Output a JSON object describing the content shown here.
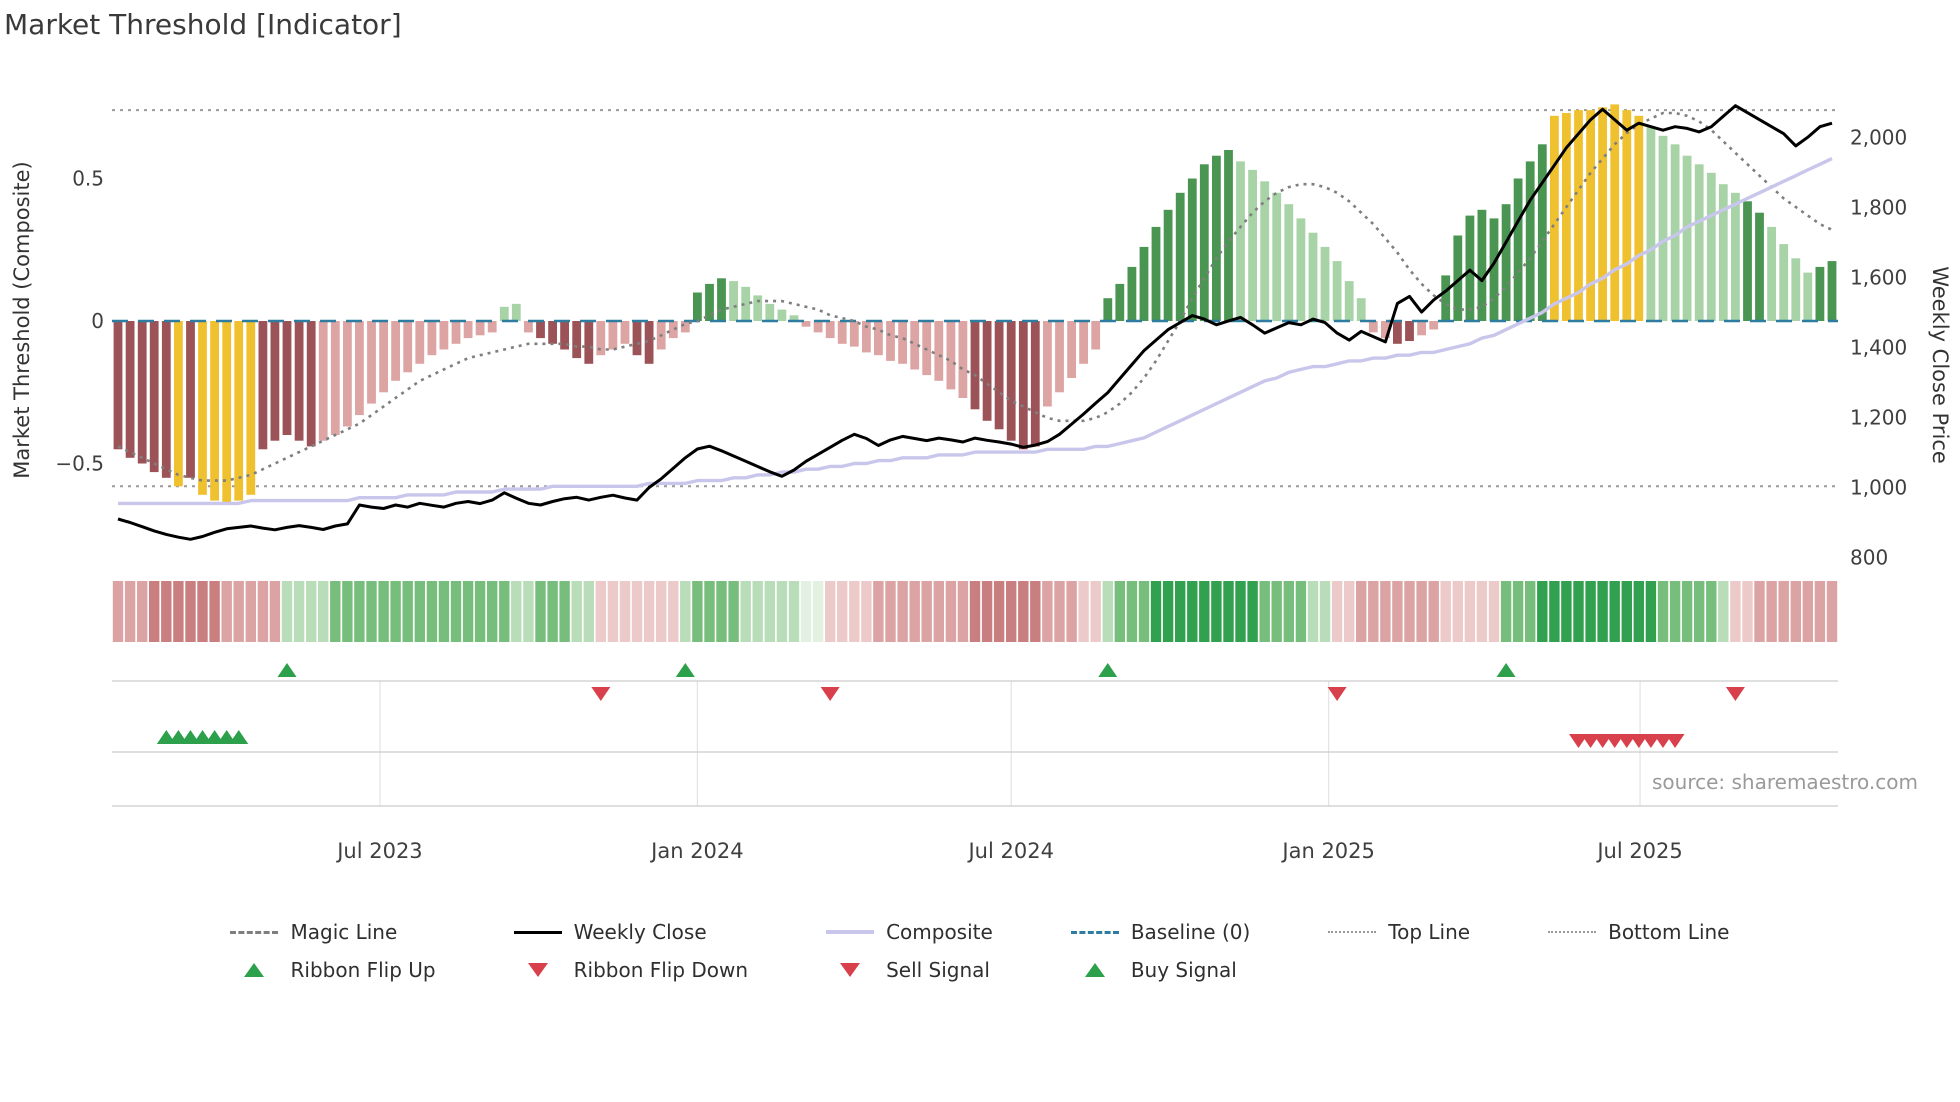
{
  "title": "Market Threshold [Indicator]",
  "source": "source: sharemaestro.com",
  "palette": {
    "bar_colors": {
      "dr": "#9c5358",
      "lr": "#dda4a4",
      "y": "#f0c12f",
      "lg": "#a7d3a7",
      "dg": "#4a9552"
    },
    "ribbon_colors": {
      "r3": "#c97f7f",
      "r2": "#dba3a3",
      "r1": "#eccaca",
      "g3": "#31a04f",
      "g2": "#77bd7c",
      "g1": "#b8ddb8",
      "g0": "#e2f1e2"
    },
    "magic_line": "#7f7f7f",
    "weekly_close": "#000000",
    "composite": "#c9c6ec",
    "baseline": "#2e7da0",
    "top_bottom": "#999999",
    "signal_green": "#2ca04a",
    "signal_red": "#d8404c",
    "panel_line": "#cccccc",
    "panel_grid": "#e3e3e3",
    "tick_text": "#3f3f3f"
  },
  "legend": {
    "row1": [
      {
        "label": "Magic Line",
        "swatch": "dashed-gray"
      },
      {
        "label": "Weekly Close",
        "swatch": "solid-black"
      },
      {
        "label": "Composite",
        "swatch": "solid-lavender"
      },
      {
        "label": "Baseline (0)",
        "swatch": "dashed-blue"
      },
      {
        "label": "Top Line",
        "swatch": "dotted-gray"
      },
      {
        "label": "Bottom Line",
        "swatch": "dotted-gray"
      }
    ],
    "row2": [
      {
        "label": "Ribbon Flip Up",
        "swatch": "triangle-up-green"
      },
      {
        "label": "Ribbon Flip Down",
        "swatch": "triangle-down-red"
      },
      {
        "label": "Sell Signal",
        "swatch": "triangle-down-red"
      },
      {
        "label": "Buy Signal",
        "swatch": "triangle-up-green"
      }
    ]
  },
  "chart_data": {
    "type": "bar+line",
    "x": {
      "unit": "week-index",
      "n": 143,
      "ticks": [
        {
          "week": 21.7,
          "label": "Jul 2023"
        },
        {
          "week": 48.0,
          "label": "Jan 2024"
        },
        {
          "week": 74.0,
          "label": "Jul 2024"
        },
        {
          "week": 100.3,
          "label": "Jan 2025"
        },
        {
          "week": 126.1,
          "label": "Jul 2025"
        }
      ]
    },
    "y_left": {
      "label": "Market Threshold (Composite)",
      "range": [
        -0.85,
        0.8
      ],
      "ticks": [
        {
          "value": 0.5,
          "label": "0.5"
        },
        {
          "value": 0,
          "label": "0"
        },
        {
          "value": -0.5,
          "label": "−0.5"
        }
      ]
    },
    "y_right": {
      "label": "Weekly Close Price",
      "range": [
        770,
        2125
      ],
      "ticks": [
        {
          "value": 2000,
          "label": "2,000"
        },
        {
          "value": 1800,
          "label": "1,800"
        },
        {
          "value": 1600,
          "label": "1,600"
        },
        {
          "value": 1400,
          "label": "1,400"
        },
        {
          "value": 1200,
          "label": "1,200"
        },
        {
          "value": 1000,
          "label": "1,000"
        },
        {
          "value": 800,
          "label": "800"
        }
      ]
    },
    "reference_lines": {
      "baseline": 0,
      "top_line": 0.74,
      "bottom_line": -0.58
    },
    "threshold_bars": {
      "axis": "left",
      "values": [
        -0.45,
        -0.48,
        -0.5,
        -0.53,
        -0.55,
        -0.58,
        -0.55,
        -0.61,
        -0.63,
        -0.64,
        -0.63,
        -0.61,
        -0.45,
        -0.42,
        -0.4,
        -0.42,
        -0.44,
        -0.42,
        -0.4,
        -0.37,
        -0.33,
        -0.29,
        -0.25,
        -0.21,
        -0.18,
        -0.15,
        -0.12,
        -0.1,
        -0.08,
        -0.06,
        -0.05,
        -0.04,
        0.05,
        0.06,
        -0.04,
        -0.06,
        -0.08,
        -0.1,
        -0.13,
        -0.15,
        -0.12,
        -0.1,
        -0.08,
        -0.12,
        -0.15,
        -0.1,
        -0.06,
        -0.04,
        0.1,
        0.13,
        0.15,
        0.14,
        0.12,
        0.09,
        0.06,
        0.04,
        0.02,
        -0.02,
        -0.04,
        -0.06,
        -0.08,
        -0.09,
        -0.11,
        -0.12,
        -0.14,
        -0.15,
        -0.17,
        -0.19,
        -0.21,
        -0.24,
        -0.27,
        -0.31,
        -0.35,
        -0.38,
        -0.42,
        -0.45,
        -0.44,
        -0.3,
        -0.25,
        -0.2,
        -0.15,
        -0.1,
        0.08,
        0.13,
        0.19,
        0.26,
        0.33,
        0.39,
        0.45,
        0.5,
        0.55,
        0.58,
        0.6,
        0.56,
        0.53,
        0.49,
        0.45,
        0.41,
        0.36,
        0.31,
        0.26,
        0.21,
        0.14,
        0.08,
        -0.04,
        -0.06,
        -0.08,
        -0.07,
        -0.05,
        -0.03,
        0.16,
        0.3,
        0.37,
        0.39,
        0.36,
        0.41,
        0.5,
        0.56,
        0.62,
        0.72,
        0.73,
        0.74,
        0.74,
        0.75,
        0.76,
        0.74,
        0.72,
        0.68,
        0.65,
        0.62,
        0.58,
        0.55,
        0.52,
        0.48,
        0.45,
        0.42,
        0.38,
        0.33,
        0.27,
        0.22,
        0.17,
        0.19,
        0.21
      ],
      "colors": [
        "dr",
        "dr",
        "dr",
        "dr",
        "dr",
        "y",
        "dr",
        "y",
        "y",
        "y",
        "y",
        "y",
        "dr",
        "dr",
        "dr",
        "dr",
        "dr",
        "lr",
        "lr",
        "lr",
        "lr",
        "lr",
        "lr",
        "lr",
        "lr",
        "lr",
        "lr",
        "lr",
        "lr",
        "lr",
        "lr",
        "lr",
        "lg",
        "lg",
        "lr",
        "dr",
        "dr",
        "dr",
        "dr",
        "dr",
        "lr",
        "lr",
        "lr",
        "dr",
        "dr",
        "lr",
        "lr",
        "lr",
        "dg",
        "dg",
        "dg",
        "lg",
        "lg",
        "lg",
        "lg",
        "lg",
        "lg",
        "lr",
        "lr",
        "lr",
        "lr",
        "lr",
        "lr",
        "lr",
        "lr",
        "lr",
        "lr",
        "lr",
        "lr",
        "lr",
        "lr",
        "dr",
        "dr",
        "dr",
        "dr",
        "dr",
        "dr",
        "lr",
        "lr",
        "lr",
        "lr",
        "lr",
        "dg",
        "dg",
        "dg",
        "dg",
        "dg",
        "dg",
        "dg",
        "dg",
        "dg",
        "dg",
        "dg",
        "lg",
        "lg",
        "lg",
        "lg",
        "lg",
        "lg",
        "lg",
        "lg",
        "lg",
        "lg",
        "lg",
        "lr",
        "lr",
        "dr",
        "dr",
        "lr",
        "lr",
        "dg",
        "dg",
        "dg",
        "dg",
        "dg",
        "dg",
        "dg",
        "dg",
        "dg",
        "y",
        "y",
        "y",
        "y",
        "y",
        "y",
        "y",
        "y",
        "lg",
        "lg",
        "lg",
        "lg",
        "lg",
        "lg",
        "lg",
        "lg",
        "dg",
        "dg",
        "lg",
        "lg",
        "lg",
        "lg",
        "dg",
        "dg"
      ]
    },
    "magic_line": {
      "axis": "left",
      "values": [
        -0.44,
        -0.46,
        -0.48,
        -0.5,
        -0.52,
        -0.54,
        -0.55,
        -0.56,
        -0.56,
        -0.56,
        -0.55,
        -0.54,
        -0.52,
        -0.5,
        -0.48,
        -0.46,
        -0.44,
        -0.42,
        -0.4,
        -0.38,
        -0.36,
        -0.33,
        -0.3,
        -0.27,
        -0.24,
        -0.21,
        -0.19,
        -0.17,
        -0.15,
        -0.13,
        -0.12,
        -0.11,
        -0.1,
        -0.09,
        -0.08,
        -0.08,
        -0.08,
        -0.08,
        -0.09,
        -0.09,
        -0.1,
        -0.1,
        -0.09,
        -0.08,
        -0.07,
        -0.05,
        -0.03,
        -0.01,
        0.0,
        0.02,
        0.04,
        0.05,
        0.06,
        0.07,
        0.07,
        0.07,
        0.06,
        0.05,
        0.04,
        0.02,
        0.01,
        0.0,
        -0.02,
        -0.03,
        -0.05,
        -0.06,
        -0.08,
        -0.1,
        -0.12,
        -0.14,
        -0.17,
        -0.19,
        -0.22,
        -0.25,
        -0.28,
        -0.3,
        -0.32,
        -0.34,
        -0.35,
        -0.35,
        -0.35,
        -0.34,
        -0.32,
        -0.29,
        -0.25,
        -0.2,
        -0.14,
        -0.07,
        0.0,
        0.08,
        0.15,
        0.22,
        0.28,
        0.33,
        0.38,
        0.42,
        0.45,
        0.47,
        0.48,
        0.48,
        0.47,
        0.45,
        0.42,
        0.38,
        0.34,
        0.29,
        0.24,
        0.18,
        0.13,
        0.09,
        0.06,
        0.04,
        0.04,
        0.05,
        0.08,
        0.12,
        0.17,
        0.22,
        0.28,
        0.34,
        0.4,
        0.46,
        0.52,
        0.57,
        0.62,
        0.66,
        0.69,
        0.71,
        0.73,
        0.73,
        0.72,
        0.7,
        0.67,
        0.63,
        0.59,
        0.55,
        0.51,
        0.47,
        0.43,
        0.4,
        0.37,
        0.34,
        0.32
      ]
    },
    "composite": {
      "axis": "left",
      "values": [
        -0.64,
        -0.64,
        -0.64,
        -0.64,
        -0.64,
        -0.64,
        -0.64,
        -0.64,
        -0.64,
        -0.64,
        -0.64,
        -0.63,
        -0.63,
        -0.63,
        -0.63,
        -0.63,
        -0.63,
        -0.63,
        -0.63,
        -0.63,
        -0.62,
        -0.62,
        -0.62,
        -0.62,
        -0.61,
        -0.61,
        -0.61,
        -0.61,
        -0.6,
        -0.6,
        -0.6,
        -0.6,
        -0.59,
        -0.59,
        -0.59,
        -0.59,
        -0.58,
        -0.58,
        -0.58,
        -0.58,
        -0.58,
        -0.58,
        -0.58,
        -0.58,
        -0.57,
        -0.57,
        -0.57,
        -0.57,
        -0.56,
        -0.56,
        -0.56,
        -0.55,
        -0.55,
        -0.54,
        -0.54,
        -0.53,
        -0.53,
        -0.52,
        -0.52,
        -0.51,
        -0.51,
        -0.5,
        -0.5,
        -0.49,
        -0.49,
        -0.48,
        -0.48,
        -0.48,
        -0.47,
        -0.47,
        -0.47,
        -0.46,
        -0.46,
        -0.46,
        -0.46,
        -0.46,
        -0.46,
        -0.45,
        -0.45,
        -0.45,
        -0.45,
        -0.44,
        -0.44,
        -0.43,
        -0.42,
        -0.41,
        -0.39,
        -0.37,
        -0.35,
        -0.33,
        -0.31,
        -0.29,
        -0.27,
        -0.25,
        -0.23,
        -0.21,
        -0.2,
        -0.18,
        -0.17,
        -0.16,
        -0.16,
        -0.15,
        -0.14,
        -0.14,
        -0.13,
        -0.13,
        -0.12,
        -0.12,
        -0.11,
        -0.11,
        -0.1,
        -0.09,
        -0.08,
        -0.06,
        -0.05,
        -0.03,
        -0.01,
        0.01,
        0.03,
        0.06,
        0.08,
        0.1,
        0.13,
        0.15,
        0.18,
        0.2,
        0.23,
        0.25,
        0.28,
        0.3,
        0.33,
        0.35,
        0.37,
        0.39,
        0.41,
        0.43,
        0.45,
        0.47,
        0.49,
        0.51,
        0.53,
        0.55,
        0.57
      ]
    },
    "weekly_close": {
      "axis": "right",
      "values": [
        910,
        900,
        888,
        876,
        866,
        858,
        852,
        860,
        872,
        882,
        886,
        890,
        884,
        879,
        886,
        891,
        886,
        880,
        890,
        896,
        950,
        944,
        940,
        950,
        944,
        955,
        949,
        944,
        955,
        960,
        954,
        964,
        985,
        969,
        955,
        950,
        960,
        968,
        972,
        964,
        972,
        978,
        970,
        964,
        1000,
        1025,
        1055,
        1085,
        1110,
        1118,
        1105,
        1090,
        1075,
        1060,
        1045,
        1032,
        1050,
        1075,
        1095,
        1115,
        1135,
        1152,
        1140,
        1120,
        1136,
        1146,
        1140,
        1134,
        1141,
        1136,
        1130,
        1141,
        1135,
        1130,
        1124,
        1115,
        1121,
        1131,
        1152,
        1181,
        1210,
        1241,
        1271,
        1311,
        1351,
        1391,
        1421,
        1451,
        1471,
        1491,
        1481,
        1465,
        1476,
        1486,
        1465,
        1441,
        1456,
        1471,
        1465,
        1481,
        1471,
        1441,
        1421,
        1446,
        1431,
        1416,
        1526,
        1546,
        1501,
        1536,
        1561,
        1591,
        1621,
        1591,
        1641,
        1701,
        1761,
        1821,
        1871,
        1921,
        1971,
        2011,
        2051,
        2081,
        2051,
        2021,
        2041,
        2031,
        2021,
        2031,
        2026,
        2016,
        2031,
        2061,
        2091,
        2071,
        2051,
        2031,
        2011,
        1976,
        2001,
        2031,
        2041
      ]
    },
    "ribbon": [
      "r2",
      "r2",
      "r2",
      "r3",
      "r3",
      "r3",
      "r3",
      "r3",
      "r3",
      "r2",
      "r2",
      "r2",
      "r2",
      "r2",
      "g1",
      "g1",
      "g1",
      "g1",
      "g2",
      "g2",
      "g2",
      "g2",
      "g2",
      "g2",
      "g2",
      "g2",
      "g2",
      "g2",
      "g2",
      "g2",
      "g2",
      "g2",
      "g2",
      "g1",
      "g1",
      "g2",
      "g2",
      "g2",
      "g1",
      "g1",
      "r1",
      "r1",
      "r1",
      "r1",
      "r1",
      "r1",
      "r1",
      "g1",
      "g2",
      "g2",
      "g2",
      "g2",
      "g1",
      "g1",
      "g1",
      "g1",
      "g1",
      "g0",
      "g0",
      "r1",
      "r1",
      "r1",
      "r1",
      "r2",
      "r2",
      "r2",
      "r2",
      "r2",
      "r2",
      "r2",
      "r2",
      "r3",
      "r3",
      "r3",
      "r3",
      "r3",
      "r3",
      "r2",
      "r2",
      "r2",
      "r1",
      "r1",
      "g1",
      "g2",
      "g2",
      "g2",
      "g3",
      "g3",
      "g3",
      "g3",
      "g3",
      "g3",
      "g3",
      "g3",
      "g3",
      "g2",
      "g2",
      "g2",
      "g2",
      "g1",
      "g1",
      "r1",
      "r1",
      "r2",
      "r2",
      "r2",
      "r2",
      "r2",
      "r2",
      "r2",
      "r1",
      "r1",
      "r1",
      "r1",
      "r1",
      "g2",
      "g2",
      "g2",
      "g3",
      "g3",
      "g3",
      "g3",
      "g3",
      "g3",
      "g3",
      "g3",
      "g3",
      "g3",
      "g2",
      "g2",
      "g2",
      "g2",
      "g2",
      "g1",
      "r1",
      "r1",
      "r2",
      "r2",
      "r2",
      "r2",
      "r2",
      "r2",
      "r2"
    ],
    "signals": {
      "ribbon_flip_up": [
        14,
        47,
        82,
        115
      ],
      "ribbon_flip_down": [
        40,
        59,
        101,
        134
      ],
      "buy": [
        4,
        5,
        6,
        7,
        8,
        9,
        10
      ],
      "sell": [
        121,
        122,
        123,
        124,
        125,
        126,
        127,
        128,
        129
      ]
    }
  }
}
